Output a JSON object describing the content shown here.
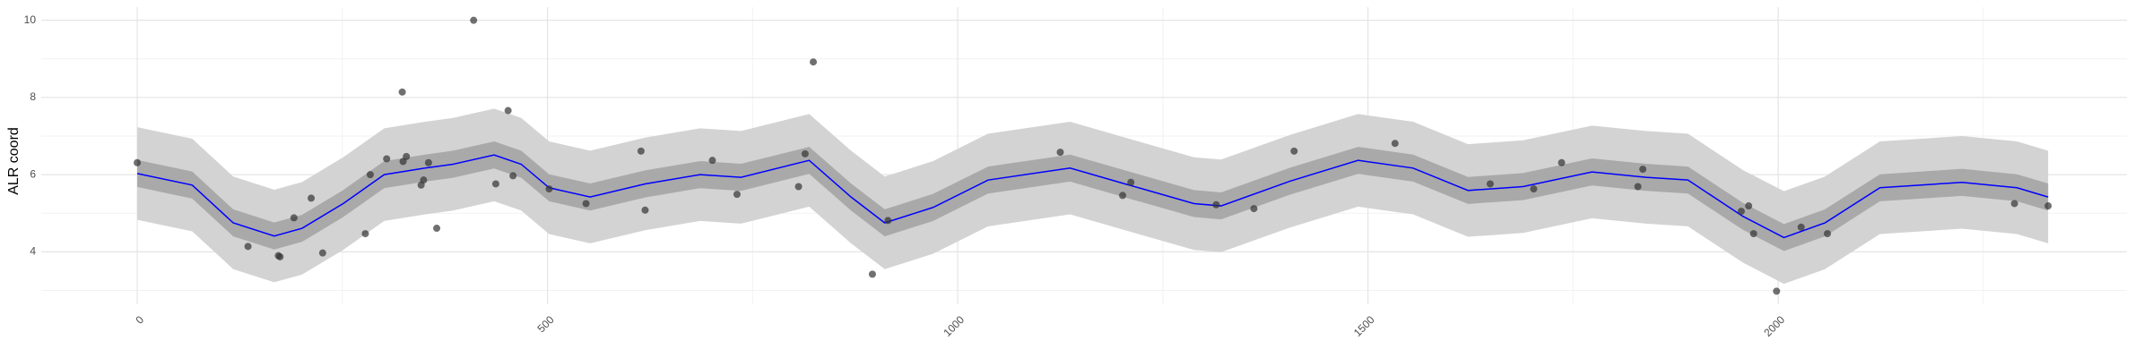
{
  "chart_data": {
    "type": "scatter",
    "ylabel": "ALR coord",
    "x": [
      0,
      135,
      172,
      174,
      191,
      212,
      226,
      278,
      284,
      304,
      323,
      324,
      328,
      346,
      349,
      355,
      365,
      410,
      437,
      452,
      458,
      502,
      547,
      614,
      619,
      701,
      731,
      806,
      814,
      824,
      896,
      915,
      1125,
      1201,
      1211,
      1315,
      1361,
      1410,
      1533,
      1649,
      1702,
      1736,
      1829,
      1835,
      1955,
      1964,
      1970,
      1998,
      2028,
      2060,
      2288,
      2329
    ],
    "values": [
      6.31,
      4.14,
      3.9,
      3.87,
      4.88,
      5.39,
      3.97,
      4.47,
      6.0,
      6.41,
      8.14,
      6.34,
      6.47,
      5.73,
      5.86,
      6.31,
      4.61,
      10.0,
      5.76,
      7.66,
      5.97,
      5.63,
      5.25,
      6.61,
      5.08,
      6.37,
      5.49,
      5.69,
      6.54,
      8.92,
      3.42,
      4.81,
      6.58,
      5.46,
      5.8,
      5.22,
      5.12,
      6.61,
      6.81,
      5.76,
      5.63,
      6.31,
      5.69,
      6.14,
      5.05,
      5.19,
      4.47,
      2.98,
      4.64,
      4.47,
      5.25,
      5.19
    ],
    "color": "#333333",
    "smooth": {
      "color": "#0000ff",
      "inner_color": "#a9a9a9",
      "outer_color": "#d3d3d3",
      "x": [
        0,
        67,
        117,
        167,
        201,
        251,
        301,
        351,
        385,
        435,
        468,
        502,
        552,
        619,
        686,
        736,
        819,
        870,
        911,
        970,
        1037,
        1137,
        1204,
        1288,
        1321,
        1405,
        1488,
        1555,
        1622,
        1689,
        1773,
        1839,
        1890,
        1957,
        2007,
        2057,
        2124,
        2224,
        2291,
        2329
      ],
      "values": [
        6.03,
        5.73,
        4.75,
        4.41,
        4.61,
        5.25,
        6.0,
        6.17,
        6.27,
        6.51,
        6.27,
        5.66,
        5.42,
        5.76,
        6.0,
        5.93,
        6.37,
        5.42,
        4.75,
        5.15,
        5.86,
        6.17,
        5.76,
        5.25,
        5.19,
        5.83,
        6.37,
        6.17,
        5.59,
        5.69,
        6.07,
        5.93,
        5.86,
        4.92,
        4.37,
        4.75,
        5.66,
        5.8,
        5.66,
        5.42
      ],
      "inner_lower": [
        5.68,
        5.38,
        4.4,
        4.06,
        4.26,
        4.9,
        5.65,
        5.82,
        5.92,
        6.16,
        5.92,
        5.31,
        5.07,
        5.41,
        5.65,
        5.58,
        6.02,
        5.07,
        4.4,
        4.8,
        5.51,
        5.82,
        5.41,
        4.9,
        4.84,
        5.48,
        6.02,
        5.82,
        5.24,
        5.34,
        5.72,
        5.58,
        5.51,
        4.57,
        4.02,
        4.4,
        5.31,
        5.45,
        5.31,
        5.07
      ],
      "inner_upper": [
        6.38,
        6.08,
        5.1,
        4.76,
        4.96,
        5.6,
        6.35,
        6.52,
        6.62,
        6.86,
        6.62,
        6.01,
        5.77,
        6.11,
        6.35,
        6.28,
        6.72,
        5.77,
        5.1,
        5.5,
        6.21,
        6.52,
        6.11,
        5.6,
        5.54,
        6.18,
        6.72,
        6.52,
        5.94,
        6.04,
        6.42,
        6.28,
        6.21,
        5.27,
        4.72,
        5.1,
        6.01,
        6.15,
        6.01,
        5.77
      ],
      "outer_lower": [
        4.83,
        4.53,
        3.55,
        3.21,
        3.41,
        4.05,
        4.8,
        4.97,
        5.07,
        5.31,
        5.07,
        4.46,
        4.22,
        4.56,
        4.8,
        4.73,
        5.17,
        4.22,
        3.55,
        3.95,
        4.66,
        4.97,
        4.56,
        4.05,
        3.99,
        4.63,
        5.17,
        4.97,
        4.39,
        4.49,
        4.87,
        4.73,
        4.66,
        3.72,
        3.17,
        3.55,
        4.46,
        4.6,
        4.46,
        4.22
      ],
      "outer_upper": [
        7.23,
        6.93,
        5.95,
        5.61,
        5.81,
        6.45,
        7.2,
        7.37,
        7.47,
        7.71,
        7.47,
        6.86,
        6.62,
        6.96,
        7.2,
        7.13,
        7.57,
        6.62,
        5.95,
        6.35,
        7.06,
        7.37,
        6.96,
        6.45,
        6.39,
        7.03,
        7.57,
        7.37,
        6.79,
        6.89,
        7.27,
        7.13,
        7.06,
        6.12,
        5.57,
        5.95,
        6.86,
        7.0,
        6.86,
        6.62
      ]
    },
    "xlim": [
      -117,
      2425
    ],
    "ylim": [
      2.64,
      10.34
    ],
    "xticks": [
      0,
      500,
      1000,
      1500,
      2000
    ],
    "yticks": [
      4,
      6,
      8,
      10
    ],
    "xminor": [
      250,
      750,
      1250,
      1750,
      2250
    ],
    "yminor": [
      3,
      5,
      7,
      9
    ],
    "grid": true
  }
}
